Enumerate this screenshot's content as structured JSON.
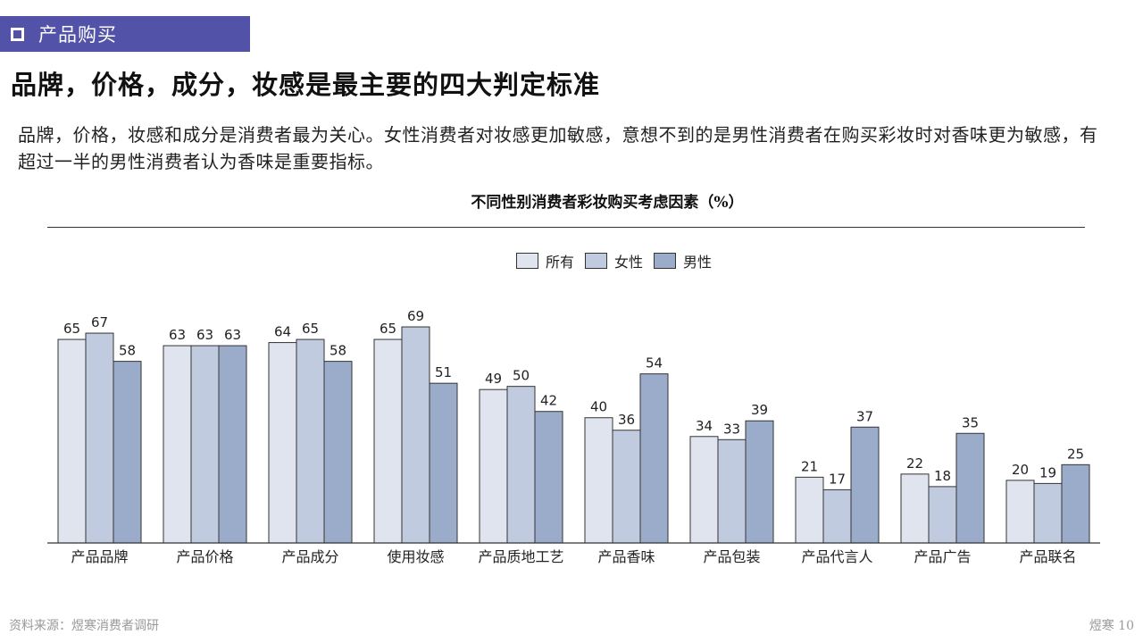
{
  "section": {
    "label": "产品购买"
  },
  "headline": "品牌，价格，成分，妆感是最主要的四大判定标准",
  "description": "品牌，价格，妆感和成分是消费者最为关心。女性消费者对妆感更加敏感，意想不到的是男性消费者在购买彩妆时对香味更为敏感，有超过一半的男性消费者认为香味是重要指标。",
  "footer": {
    "source": "资料来源：煜寒消费者调研",
    "page": "煜寒 10"
  },
  "colors": {
    "accent": "#5152a8",
    "series": [
      "#dfe4ef",
      "#c1cbe0",
      "#9aacc9"
    ]
  },
  "chart_data": {
    "type": "bar",
    "title": "不同性别消费者彩妆购买考虑因素（%）",
    "categories": [
      "产品品牌",
      "产品价格",
      "产品成分",
      "使用妆感",
      "产品质地工艺",
      "产品香味",
      "产品包装",
      "产品代言人",
      "产品广告",
      "产品联名"
    ],
    "series": [
      {
        "name": "所有",
        "values": [
          65,
          63,
          64,
          65,
          49,
          40,
          34,
          21,
          22,
          20
        ]
      },
      {
        "name": "女性",
        "values": [
          67,
          63,
          65,
          69,
          50,
          36,
          33,
          17,
          18,
          19
        ]
      },
      {
        "name": "男性",
        "values": [
          58,
          63,
          58,
          51,
          42,
          54,
          39,
          37,
          35,
          25
        ]
      }
    ],
    "ylim": [
      0,
      75
    ],
    "legend_position": "top-center",
    "grid": false
  }
}
